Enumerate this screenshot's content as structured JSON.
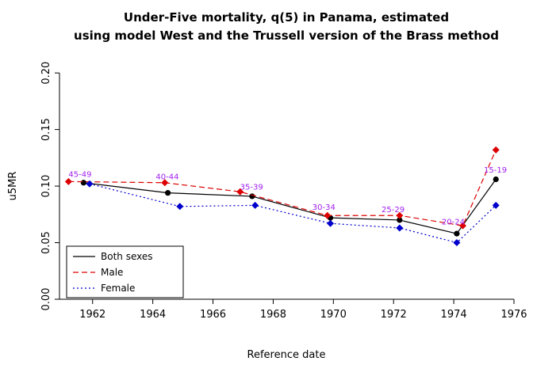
{
  "chart_data": {
    "type": "line",
    "title_line1": "Under-Five mortality, q(5) in Panama, estimated",
    "title_line2": "using model West and the Trussell version of the Brass method",
    "xlabel": "Reference date",
    "ylabel": "u5MR",
    "xlim": [
      1960.9,
      1976.0
    ],
    "ylim": [
      0,
      0.205
    ],
    "xticks": [
      1962,
      1964,
      1966,
      1968,
      1970,
      1972,
      1974,
      1976
    ],
    "yticks": [
      0,
      0.05,
      0.1,
      0.15,
      0.2
    ],
    "ytick_labels": [
      "0.00",
      "0.05",
      "0.10",
      "0.15",
      "0.20"
    ],
    "grid": false,
    "legend_position": "bottom-left",
    "annotation_color": "#a020f0",
    "series": [
      {
        "name": "Both sexes",
        "color": "#000000",
        "dash": "solid",
        "marker": "circle",
        "x": [
          1961.7,
          1964.5,
          1967.3,
          1969.9,
          1972.2,
          1974.1,
          1975.4
        ],
        "y": [
          0.103,
          0.094,
          0.091,
          0.072,
          0.07,
          0.058,
          0.106
        ]
      },
      {
        "name": "Male",
        "color": "#dd0000",
        "dash": "dashed",
        "marker": "diamond",
        "x": [
          1961.2,
          1964.4,
          1966.9,
          1969.8,
          1972.2,
          1974.3,
          1975.4
        ],
        "y": [
          0.104,
          0.103,
          0.095,
          0.074,
          0.074,
          0.065,
          0.132
        ]
      },
      {
        "name": "Female",
        "color": "#0000cc",
        "dash": "dotted",
        "marker": "diamond",
        "x": [
          1961.9,
          1964.9,
          1967.4,
          1969.9,
          1972.2,
          1974.1,
          1975.4
        ],
        "y": [
          0.102,
          0.082,
          0.083,
          0.067,
          0.063,
          0.05,
          0.083
        ]
      }
    ],
    "annotations": [
      {
        "label": "45-49",
        "x": 1961.2,
        "y": 0.108
      },
      {
        "label": "40-44",
        "x": 1964.1,
        "y": 0.106
      },
      {
        "label": "35-39",
        "x": 1966.9,
        "y": 0.097
      },
      {
        "label": "30-34",
        "x": 1969.3,
        "y": 0.079
      },
      {
        "label": "25-29",
        "x": 1971.6,
        "y": 0.077
      },
      {
        "label": "20-24",
        "x": 1973.6,
        "y": 0.066
      },
      {
        "label": "15-19",
        "x": 1975.0,
        "y": 0.112
      }
    ]
  }
}
